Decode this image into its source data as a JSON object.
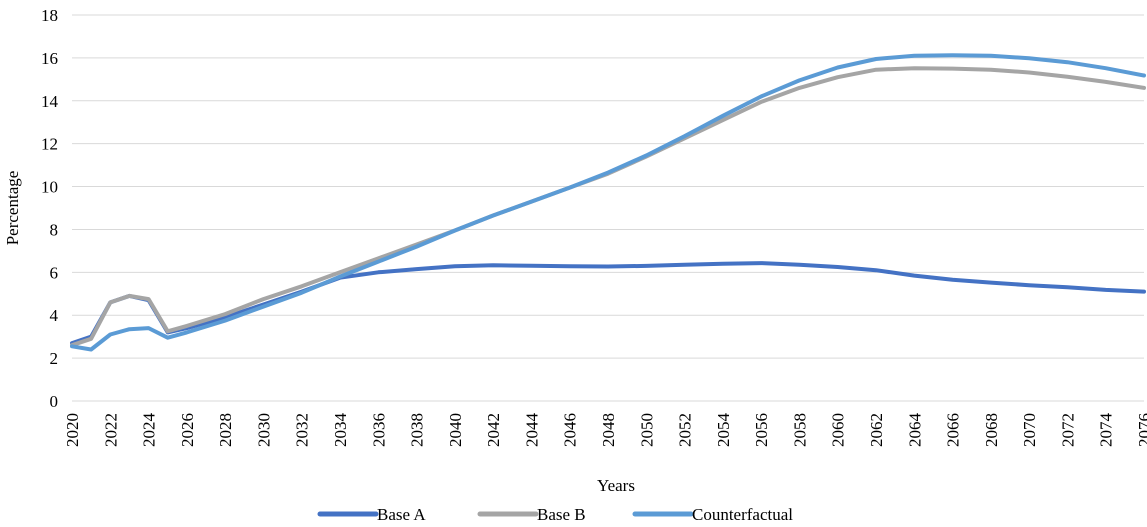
{
  "chart_data": {
    "type": "line",
    "title": "",
    "xlabel": "Years",
    "ylabel": "Percentage",
    "ylim": [
      0,
      18
    ],
    "yticks": [
      0,
      2,
      4,
      6,
      8,
      10,
      12,
      14,
      16,
      18
    ],
    "xlim": [
      2020,
      2076
    ],
    "xticks": [
      2020,
      2022,
      2024,
      2026,
      2028,
      2030,
      2032,
      2034,
      2036,
      2038,
      2040,
      2042,
      2044,
      2046,
      2048,
      2050,
      2052,
      2054,
      2056,
      2058,
      2060,
      2062,
      2064,
      2066,
      2068,
      2070,
      2072,
      2074,
      2076
    ],
    "grid": "horizontal",
    "legend_position": "bottom",
    "series": [
      {
        "name": "Base A",
        "color": "#4472C4",
        "points": [
          [
            2020,
            2.7
          ],
          [
            2021,
            3.0
          ],
          [
            2022,
            4.6
          ],
          [
            2023,
            4.9
          ],
          [
            2024,
            4.7
          ],
          [
            2025,
            3.2
          ],
          [
            2026,
            3.4
          ],
          [
            2028,
            3.9
          ],
          [
            2030,
            4.5
          ],
          [
            2032,
            5.1
          ],
          [
            2034,
            5.75
          ],
          [
            2036,
            6.0
          ],
          [
            2038,
            6.15
          ],
          [
            2040,
            6.28
          ],
          [
            2042,
            6.33
          ],
          [
            2044,
            6.31
          ],
          [
            2046,
            6.28
          ],
          [
            2048,
            6.27
          ],
          [
            2050,
            6.3
          ],
          [
            2052,
            6.35
          ],
          [
            2054,
            6.4
          ],
          [
            2056,
            6.43
          ],
          [
            2058,
            6.35
          ],
          [
            2060,
            6.25
          ],
          [
            2062,
            6.1
          ],
          [
            2064,
            5.85
          ],
          [
            2066,
            5.65
          ],
          [
            2068,
            5.52
          ],
          [
            2070,
            5.4
          ],
          [
            2072,
            5.3
          ],
          [
            2074,
            5.18
          ],
          [
            2076,
            5.1
          ]
        ]
      },
      {
        "name": "Base B",
        "color": "#A5A5A5",
        "points": [
          [
            2020,
            2.6
          ],
          [
            2021,
            2.9
          ],
          [
            2022,
            4.6
          ],
          [
            2023,
            4.9
          ],
          [
            2024,
            4.75
          ],
          [
            2025,
            3.25
          ],
          [
            2026,
            3.5
          ],
          [
            2028,
            4.05
          ],
          [
            2030,
            4.75
          ],
          [
            2032,
            5.35
          ],
          [
            2034,
            6.0
          ],
          [
            2036,
            6.65
          ],
          [
            2038,
            7.3
          ],
          [
            2040,
            7.95
          ],
          [
            2042,
            8.65
          ],
          [
            2044,
            9.3
          ],
          [
            2046,
            9.95
          ],
          [
            2048,
            10.6
          ],
          [
            2050,
            11.4
          ],
          [
            2052,
            12.25
          ],
          [
            2054,
            13.1
          ],
          [
            2056,
            13.95
          ],
          [
            2058,
            14.6
          ],
          [
            2060,
            15.1
          ],
          [
            2062,
            15.45
          ],
          [
            2064,
            15.52
          ],
          [
            2066,
            15.5
          ],
          [
            2068,
            15.45
          ],
          [
            2070,
            15.32
          ],
          [
            2072,
            15.12
          ],
          [
            2074,
            14.88
          ],
          [
            2076,
            14.6
          ]
        ]
      },
      {
        "name": "Counterfactual",
        "color": "#5B9BD5",
        "points": [
          [
            2020,
            2.55
          ],
          [
            2021,
            2.4
          ],
          [
            2022,
            3.1
          ],
          [
            2023,
            3.35
          ],
          [
            2024,
            3.4
          ],
          [
            2025,
            2.95
          ],
          [
            2026,
            3.2
          ],
          [
            2028,
            3.75
          ],
          [
            2030,
            4.4
          ],
          [
            2032,
            5.05
          ],
          [
            2034,
            5.8
          ],
          [
            2036,
            6.5
          ],
          [
            2038,
            7.2
          ],
          [
            2040,
            7.95
          ],
          [
            2042,
            8.65
          ],
          [
            2044,
            9.3
          ],
          [
            2046,
            9.95
          ],
          [
            2048,
            10.65
          ],
          [
            2050,
            11.45
          ],
          [
            2052,
            12.35
          ],
          [
            2054,
            13.3
          ],
          [
            2056,
            14.2
          ],
          [
            2058,
            14.95
          ],
          [
            2060,
            15.55
          ],
          [
            2062,
            15.95
          ],
          [
            2064,
            16.1
          ],
          [
            2066,
            16.12
          ],
          [
            2068,
            16.1
          ],
          [
            2070,
            15.98
          ],
          [
            2072,
            15.8
          ],
          [
            2074,
            15.52
          ],
          [
            2076,
            15.18
          ]
        ]
      }
    ]
  }
}
